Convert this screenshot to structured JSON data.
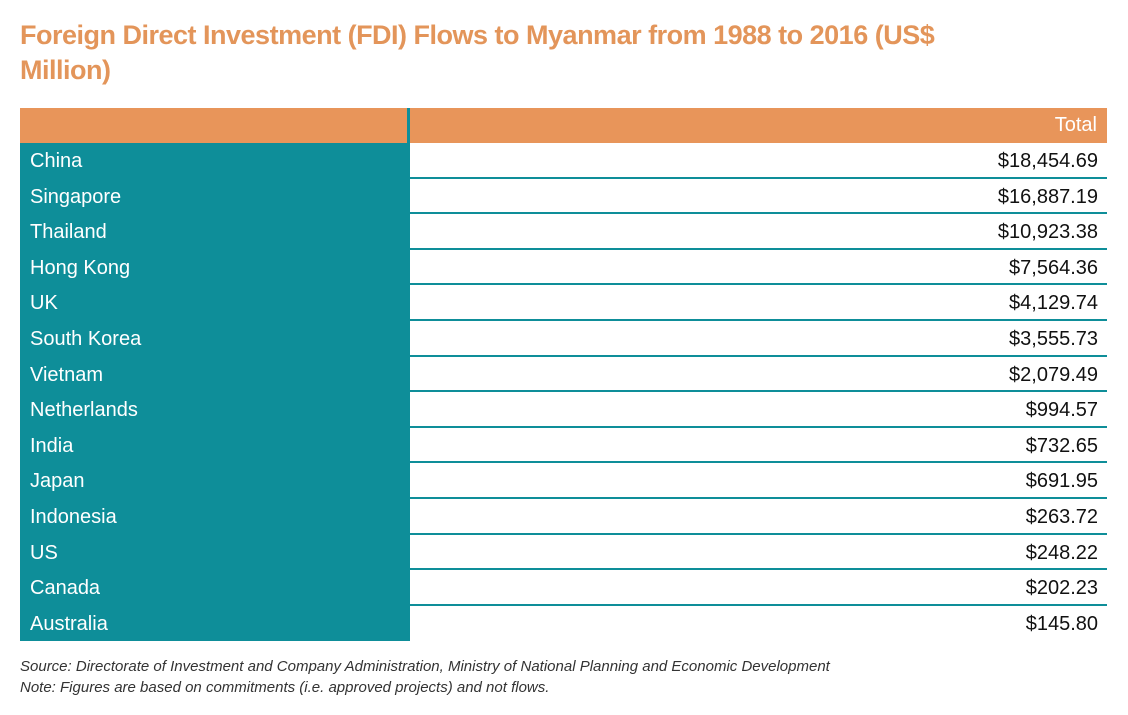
{
  "title": "Foreign Direct Investment (FDI) Flows to Myanmar from 1988 to 2016 (US$ Million)",
  "chart_data": {
    "type": "table",
    "title": "Foreign Direct Investment (FDI) Flows to Myanmar from 1988 to 2016 (US$ Million)",
    "columns": [
      "",
      "Total"
    ],
    "rows": [
      {
        "country": "China",
        "total": "$18,454.69"
      },
      {
        "country": "Singapore",
        "total": "$16,887.19"
      },
      {
        "country": "Thailand",
        "total": "$10,923.38"
      },
      {
        "country": "Hong Kong",
        "total": "$7,564.36"
      },
      {
        "country": "UK",
        "total": "$4,129.74"
      },
      {
        "country": "South Korea",
        "total": "$3,555.73"
      },
      {
        "country": "Vietnam",
        "total": "$2,079.49"
      },
      {
        "country": "Netherlands",
        "total": "$994.57"
      },
      {
        "country": "India",
        "total": "$732.65"
      },
      {
        "country": "Japan",
        "total": "$691.95"
      },
      {
        "country": "Indonesia",
        "total": "$263.72"
      },
      {
        "country": "US",
        "total": "$248.22"
      },
      {
        "country": "Canada",
        "total": "$202.23"
      },
      {
        "country": "Australia",
        "total": "$145.80"
      }
    ]
  },
  "source_note": "Source: Directorate of Investment and Company Administration, Ministry of National Planning and Economic Development",
  "figures_note": "Note: Figures are based on commitments (i.e. approved projects) and not flows.",
  "colors": {
    "header": "#e8955a",
    "country_column": "#0e8e99",
    "title": "#e3955a"
  }
}
